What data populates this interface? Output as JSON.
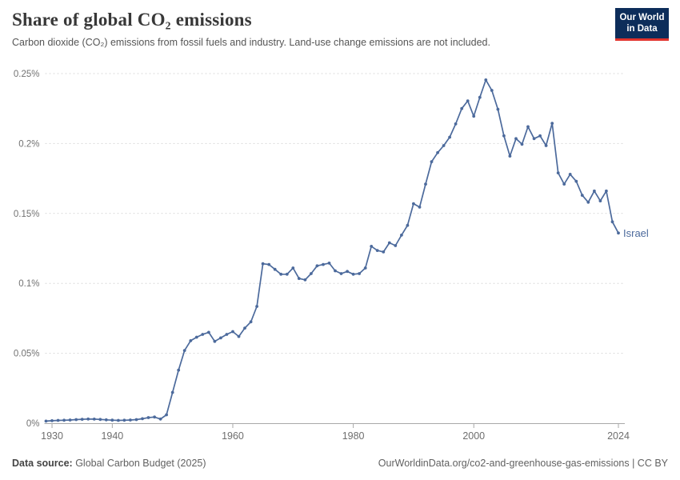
{
  "header": {
    "title": "Share of global CO₂ emissions",
    "subtitle": "Carbon dioxide (CO₂) emissions from fossil fuels and industry. Land-use change emissions are not included."
  },
  "logo": {
    "line1": "Our World",
    "line2": "in Data",
    "bg_color": "#0d2d5a",
    "accent_color": "#e2332c"
  },
  "chart_data": {
    "type": "line",
    "title": "Share of global CO₂ emissions",
    "xlabel": "",
    "ylabel": "",
    "xlim": [
      1929,
      2024
    ],
    "ylim": [
      0,
      0.25
    ],
    "grid": "horizontal-dashed",
    "legend_position": "end-of-line-label",
    "x_ticks": [
      1930,
      1940,
      1960,
      1980,
      2000,
      2024
    ],
    "y_ticks": [
      0,
      0.05,
      0.1,
      0.15,
      0.2,
      0.25
    ],
    "y_tick_labels": [
      "0%",
      "0.05%",
      "0.1%",
      "0.15%",
      "0.2%",
      "0.25%"
    ],
    "unit": "%",
    "series": [
      {
        "name": "Israel",
        "color": "#4c6a9c",
        "x": [
          1929,
          1930,
          1931,
          1932,
          1933,
          1934,
          1935,
          1936,
          1937,
          1938,
          1939,
          1940,
          1941,
          1942,
          1943,
          1944,
          1945,
          1946,
          1947,
          1948,
          1949,
          1950,
          1951,
          1952,
          1953,
          1954,
          1955,
          1956,
          1957,
          1958,
          1959,
          1960,
          1961,
          1962,
          1963,
          1964,
          1965,
          1966,
          1967,
          1968,
          1969,
          1970,
          1971,
          1972,
          1973,
          1974,
          1975,
          1976,
          1977,
          1978,
          1979,
          1980,
          1981,
          1982,
          1983,
          1984,
          1985,
          1986,
          1987,
          1988,
          1989,
          1990,
          1991,
          1992,
          1993,
          1994,
          1995,
          1996,
          1997,
          1998,
          1999,
          2000,
          2001,
          2002,
          2003,
          2004,
          2005,
          2006,
          2007,
          2008,
          2009,
          2010,
          2011,
          2012,
          2013,
          2014,
          2015,
          2016,
          2017,
          2018,
          2019,
          2020,
          2021,
          2022,
          2023,
          2024
        ],
        "values": [
          0.0015,
          0.0018,
          0.002,
          0.0021,
          0.0023,
          0.0026,
          0.0028,
          0.003,
          0.0029,
          0.0027,
          0.0024,
          0.0022,
          0.002,
          0.0021,
          0.0023,
          0.0026,
          0.0032,
          0.004,
          0.0044,
          0.003,
          0.006,
          0.022,
          0.038,
          0.052,
          0.059,
          0.0615,
          0.0635,
          0.065,
          0.0585,
          0.061,
          0.0635,
          0.0655,
          0.062,
          0.068,
          0.0725,
          0.0835,
          0.114,
          0.1135,
          0.11,
          0.1065,
          0.1065,
          0.111,
          0.1035,
          0.1025,
          0.107,
          0.1125,
          0.1135,
          0.1145,
          0.109,
          0.107,
          0.1085,
          0.1065,
          0.107,
          0.111,
          0.1265,
          0.1235,
          0.1225,
          0.129,
          0.127,
          0.1345,
          0.1415,
          0.157,
          0.1545,
          0.171,
          0.187,
          0.1935,
          0.1985,
          0.2045,
          0.214,
          0.225,
          0.2305,
          0.2195,
          0.233,
          0.2455,
          0.238,
          0.2245,
          0.2055,
          0.191,
          0.2035,
          0.1995,
          0.212,
          0.2035,
          0.2055,
          0.1985,
          0.2145,
          0.179,
          0.171,
          0.178,
          0.173,
          0.163,
          0.158,
          0.166,
          0.159,
          0.166,
          0.144,
          0.136
        ]
      }
    ]
  },
  "footer": {
    "source_label": "Data source:",
    "source_text": " Global Carbon Budget (2025)",
    "right_text": "OurWorldinData.org/co2-and-greenhouse-gas-emissions | CC BY"
  }
}
